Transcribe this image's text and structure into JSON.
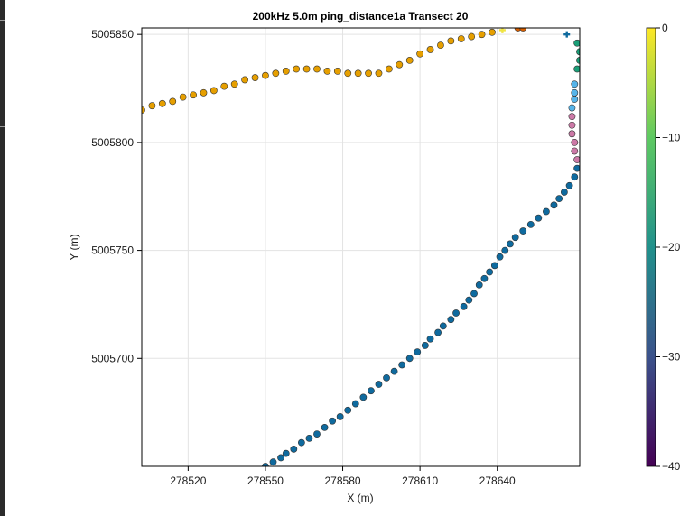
{
  "chart_data": {
    "type": "scatter",
    "title": "200kHz 5.0m ping_distance1a Transect 20",
    "xlabel": "X (m)",
    "ylabel": "Y (m)",
    "xlim": [
      278502,
      278672
    ],
    "ylim": [
      5005650,
      5005853
    ],
    "xticks": [
      278520,
      278550,
      278580,
      278610,
      278640
    ],
    "xtick_labels": [
      "278520",
      "278550",
      "278580",
      "278610",
      "278640"
    ],
    "yticks": [
      5005700,
      5005750,
      5005800,
      5005850
    ],
    "ytick_labels": [
      "5005700",
      "5005750",
      "5005800",
      "5005850"
    ],
    "grid": true,
    "colorbar": {
      "colormap": "viridis",
      "range": [
        -40,
        0
      ],
      "ticks": [
        0,
        -10,
        -20,
        -30,
        -40
      ],
      "tick_labels": [
        "0",
        "−10",
        "−20",
        "−30",
        "−40"
      ]
    },
    "color_meaning_values": {
      "orange": "#e69f00",
      "lightblue": "#56b4e9",
      "pink": "#cc79a7",
      "darkblue": "#0f6a9e",
      "green": "#1a9e77",
      "yellow": "#f0e442",
      "dark_orange": "#d55e00"
    },
    "series": [
      {
        "color": "#e69f00",
        "marker": "circle",
        "points": [
          [
            278502,
            5005815
          ],
          [
            278506,
            5005817
          ],
          [
            278510,
            5005818
          ],
          [
            278514,
            5005819
          ],
          [
            278518,
            5005821
          ],
          [
            278522,
            5005822
          ],
          [
            278526,
            5005823
          ],
          [
            278530,
            5005824
          ],
          [
            278534,
            5005826
          ],
          [
            278538,
            5005827
          ],
          [
            278542,
            5005829
          ],
          [
            278546,
            5005830
          ],
          [
            278550,
            5005831
          ],
          [
            278554,
            5005832
          ],
          [
            278558,
            5005833
          ],
          [
            278562,
            5005834
          ],
          [
            278566,
            5005834
          ],
          [
            278570,
            5005834
          ],
          [
            278574,
            5005833
          ],
          [
            278578,
            5005833
          ],
          [
            278582,
            5005832
          ],
          [
            278586,
            5005832
          ],
          [
            278590,
            5005832
          ],
          [
            278594,
            5005832
          ],
          [
            278598,
            5005834
          ],
          [
            278602,
            5005836
          ],
          [
            278606,
            5005838
          ],
          [
            278610,
            5005841
          ],
          [
            278614,
            5005843
          ],
          [
            278618,
            5005845
          ],
          [
            278622,
            5005847
          ],
          [
            278626,
            5005848
          ],
          [
            278630,
            5005849
          ],
          [
            278634,
            5005850
          ],
          [
            278638,
            5005851
          ]
        ]
      },
      {
        "color": "#f0e442",
        "marker": "plus",
        "points": [
          [
            278642,
            5005852
          ]
        ]
      },
      {
        "color": "#d55e00",
        "marker": "circle",
        "points": [
          [
            278648,
            5005853
          ],
          [
            278650,
            5005853
          ]
        ]
      },
      {
        "color": "#0f6a9e",
        "marker": "plus",
        "points": [
          [
            278667,
            5005850
          ]
        ]
      },
      {
        "color": "#1a9e77",
        "marker": "circle",
        "points": [
          [
            278671,
            5005846
          ],
          [
            278672,
            5005842
          ],
          [
            278672,
            5005838
          ],
          [
            278671,
            5005834
          ]
        ]
      },
      {
        "color": "#56b4e9",
        "marker": "circle",
        "points": [
          [
            278670,
            5005827
          ],
          [
            278670,
            5005823
          ],
          [
            278670,
            5005820
          ],
          [
            278669,
            5005816
          ]
        ]
      },
      {
        "color": "#cc79a7",
        "marker": "circle",
        "points": [
          [
            278669,
            5005812
          ],
          [
            278669,
            5005808
          ],
          [
            278669,
            5005804
          ],
          [
            278670,
            5005800
          ],
          [
            278670,
            5005796
          ],
          [
            278671,
            5005792
          ]
        ]
      },
      {
        "color": "#0f6a9e",
        "marker": "circle",
        "points": [
          [
            278671,
            5005788
          ],
          [
            278670,
            5005784
          ],
          [
            278668,
            5005780
          ],
          [
            278666,
            5005777
          ],
          [
            278664,
            5005774
          ],
          [
            278662,
            5005771
          ],
          [
            278659,
            5005768
          ],
          [
            278656,
            5005765
          ],
          [
            278653,
            5005762
          ],
          [
            278650,
            5005759
          ],
          [
            278647,
            5005756
          ],
          [
            278645,
            5005753
          ],
          [
            278643,
            5005750
          ],
          [
            278641,
            5005747
          ],
          [
            278639,
            5005743
          ],
          [
            278637,
            5005740
          ],
          [
            278635,
            5005737
          ],
          [
            278633,
            5005734
          ],
          [
            278631,
            5005730
          ],
          [
            278629,
            5005727
          ],
          [
            278627,
            5005724
          ],
          [
            278624,
            5005721
          ],
          [
            278622,
            5005718
          ],
          [
            278619,
            5005715
          ],
          [
            278617,
            5005712
          ],
          [
            278614,
            5005709
          ],
          [
            278612,
            5005706
          ],
          [
            278609,
            5005703
          ],
          [
            278606,
            5005700
          ],
          [
            278603,
            5005697
          ],
          [
            278600,
            5005694
          ],
          [
            278597,
            5005691
          ],
          [
            278594,
            5005688
          ],
          [
            278591,
            5005685
          ],
          [
            278588,
            5005682
          ],
          [
            278585,
            5005679
          ],
          [
            278582,
            5005676
          ],
          [
            278579,
            5005673
          ],
          [
            278576,
            5005671
          ],
          [
            278573,
            5005668
          ],
          [
            278570,
            5005665
          ],
          [
            278567,
            5005663
          ],
          [
            278564,
            5005661
          ],
          [
            278561,
            5005658
          ],
          [
            278558,
            5005656
          ],
          [
            278556,
            5005654
          ],
          [
            278553,
            5005652
          ],
          [
            278550,
            5005650
          ]
        ]
      }
    ]
  }
}
